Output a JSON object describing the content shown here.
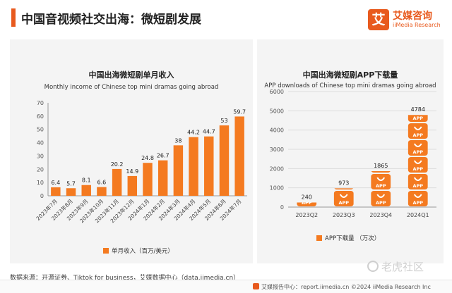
{
  "page": {
    "title": "中国音视频社交出海：微短剧发展"
  },
  "logo": {
    "mark": "艾",
    "cn": "艾媒咨询",
    "en": "iiMedia Research"
  },
  "footer": {
    "source": "数据来源：开源证券、Tiktok for business，艾媒数据中心（data.iimedia.cn）",
    "report": "艾媒报告中心：report.iimedia.cn    ©2024  iiMedia Research  Inc",
    "watermark": "老虎社区"
  },
  "colors": {
    "accent": "#e85a1e",
    "bar": "#f47a20"
  },
  "chart_data": [
    {
      "type": "bar",
      "title": "中国出海微短剧单月收入",
      "subtitle": "Monthly income of Chinese top mini dramas going abroad",
      "categories": [
        "2023年7月",
        "2023年8月",
        "2023年9月",
        "2023年10月",
        "2023年11月",
        "2023年12月",
        "2024年1月",
        "2024年2月",
        "2024年3月",
        "2024年4月",
        "2024年5月",
        "2024年6月",
        "2024年7月"
      ],
      "series": [
        {
          "name": "单月收入（百万/美元）",
          "values": [
            6.4,
            5.7,
            8.1,
            6.6,
            20.2,
            14.9,
            24.8,
            26.7,
            38,
            44.2,
            44.7,
            53,
            59.7
          ]
        }
      ],
      "ylim": [
        0,
        70
      ],
      "yticks": [
        0,
        10,
        20,
        30,
        40,
        50,
        60,
        70
      ],
      "legend_position": "bottom",
      "grid": false
    },
    {
      "type": "bar",
      "title": "中国出海微短剧APP下载量",
      "subtitle": "APP downloads of Chinese top mini dramas going abroad",
      "categories": [
        "2023Q2",
        "2023Q3",
        "2023Q4",
        "2024Q1"
      ],
      "series": [
        {
          "name": "APP下载量 （万次）",
          "values": [
            240,
            973,
            1865,
            4784
          ]
        }
      ],
      "ylim": [
        0,
        6000
      ],
      "yticks": [
        0,
        1000,
        2000,
        3000,
        4000,
        5000,
        6000
      ],
      "icon_label": "APP",
      "legend_position": "bottom",
      "grid": true
    }
  ]
}
